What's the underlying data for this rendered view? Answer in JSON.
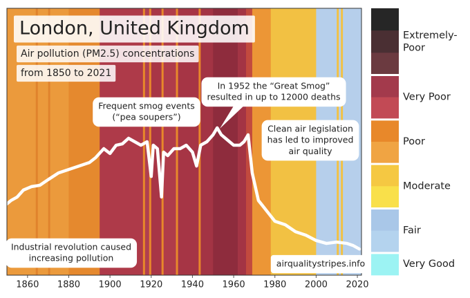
{
  "chart_data": {
    "type": "line",
    "title": "London, United Kingdom",
    "subtitle": [
      "Air pollution (PM2.5) concentrations",
      "from 1850 to 2021"
    ],
    "xlim": [
      1850,
      2022
    ],
    "xticks": [
      1860,
      1880,
      1900,
      1920,
      1940,
      1960,
      1980,
      2000,
      2020
    ],
    "ylim": [
      0,
      100
    ],
    "x": [
      1850,
      1852,
      1855,
      1858,
      1862,
      1866,
      1870,
      1875,
      1880,
      1885,
      1890,
      1893,
      1897,
      1900,
      1903,
      1906,
      1909,
      1912,
      1915,
      1918,
      1920,
      1921,
      1923,
      1925,
      1926,
      1928,
      1931,
      1934,
      1937,
      1940,
      1942,
      1944,
      1947,
      1950,
      1952,
      1954,
      1956,
      1958,
      1960,
      1963,
      1965,
      1967,
      1969,
      1972,
      1976,
      1980,
      1985,
      1990,
      1995,
      2000,
      2005,
      2010,
      2015,
      2018,
      2021
    ],
    "series": [
      {
        "color": "#ffffff",
        "values": [
          26.7,
          28,
          29.3,
          31.9,
          33.2,
          33.7,
          35.8,
          38.3,
          39.6,
          40.9,
          42.2,
          44,
          47.4,
          45.6,
          48.7,
          49.2,
          51.3,
          50,
          48.7,
          50,
          37,
          48.7,
          47.4,
          29.3,
          46.1,
          44.8,
          47.4,
          47.4,
          48.7,
          46.1,
          40.9,
          48.7,
          50,
          52.6,
          55.2,
          52.6,
          51.3,
          50,
          48.7,
          48.7,
          50,
          52.6,
          38.3,
          28,
          24.1,
          20.2,
          18.9,
          16.3,
          15,
          13,
          11.9,
          12.4,
          11.9,
          11.1,
          9.8
        ]
      }
    ],
    "stripes": [
      {
        "from": 1850,
        "to": 1864,
        "color": "#eb9a3c"
      },
      {
        "from": 1864,
        "to": 1865,
        "color": "#e0822c"
      },
      {
        "from": 1865,
        "to": 1870,
        "color": "#eb9a3c"
      },
      {
        "from": 1870,
        "to": 1871,
        "color": "#e0822c"
      },
      {
        "from": 1871,
        "to": 1880,
        "color": "#eb9a3c"
      },
      {
        "from": 1880,
        "to": 1895,
        "color": "#e5892e"
      },
      {
        "from": 1895,
        "to": 1916,
        "color": "#ae3a49"
      },
      {
        "from": 1916,
        "to": 1917,
        "color": "#e8882a"
      },
      {
        "from": 1917,
        "to": 1919,
        "color": "#b04050"
      },
      {
        "from": 1919,
        "to": 1920,
        "color": "#e8882a"
      },
      {
        "from": 1920,
        "to": 1925,
        "color": "#a83646"
      },
      {
        "from": 1925,
        "to": 1926,
        "color": "#e8882a"
      },
      {
        "from": 1926,
        "to": 1932,
        "color": "#b03c4a"
      },
      {
        "from": 1932,
        "to": 1933,
        "color": "#e8882a"
      },
      {
        "from": 1933,
        "to": 1943,
        "color": "#a63545"
      },
      {
        "from": 1943,
        "to": 1944,
        "color": "#e8882a"
      },
      {
        "from": 1944,
        "to": 1950,
        "color": "#a33444"
      },
      {
        "from": 1950,
        "to": 1962,
        "color": "#8e2c3d"
      },
      {
        "from": 1962,
        "to": 1966,
        "color": "#a33444"
      },
      {
        "from": 1966,
        "to": 1969,
        "color": "#c24a3e"
      },
      {
        "from": 1969,
        "to": 1978,
        "color": "#ec9636"
      },
      {
        "from": 1978,
        "to": 2000,
        "color": "#f2c143"
      },
      {
        "from": 2000,
        "to": 2010,
        "color": "#b6cfeb"
      },
      {
        "from": 2010,
        "to": 2011,
        "color": "#f2c143"
      },
      {
        "from": 2011,
        "to": 2012,
        "color": "#b6cfeb"
      },
      {
        "from": 2012,
        "to": 2013,
        "color": "#f2c143"
      },
      {
        "from": 2013,
        "to": 2022,
        "color": "#b6cfeb"
      }
    ],
    "legend": [
      {
        "label": [
          "Extremely-",
          "Poor"
        ],
        "colors": [
          "#262626",
          "#4a2f33",
          "#6b3a40"
        ]
      },
      {
        "label": [
          "Very Poor"
        ],
        "colors": [
          "#a33a4c",
          "#c24a55"
        ]
      },
      {
        "label": [
          "Poor"
        ],
        "colors": [
          "#e8882a",
          "#f0a443"
        ]
      },
      {
        "label": [
          "Moderate"
        ],
        "colors": [
          "#f5c842",
          "#f9e04a"
        ]
      },
      {
        "label": [
          "Fair"
        ],
        "colors": [
          "#a9c7e8",
          "#b4d3ee"
        ]
      },
      {
        "label": [
          "Very Good"
        ],
        "colors": [
          "#9cf3f3"
        ]
      }
    ],
    "annotations": [
      {
        "lines": [
          "Frequent smog events",
          "(“pea soupers”)"
        ]
      },
      {
        "lines": [
          "In 1952 the “Great Smog”",
          "resulted in up to 12000 deaths"
        ]
      },
      {
        "lines": [
          "Clean air legislation",
          "has led to improved",
          "air quality"
        ]
      },
      {
        "lines": [
          "Industrial revolution caused",
          "increasing pollution"
        ]
      },
      {
        "lines": [
          "airqualitystripes.info"
        ]
      }
    ]
  }
}
